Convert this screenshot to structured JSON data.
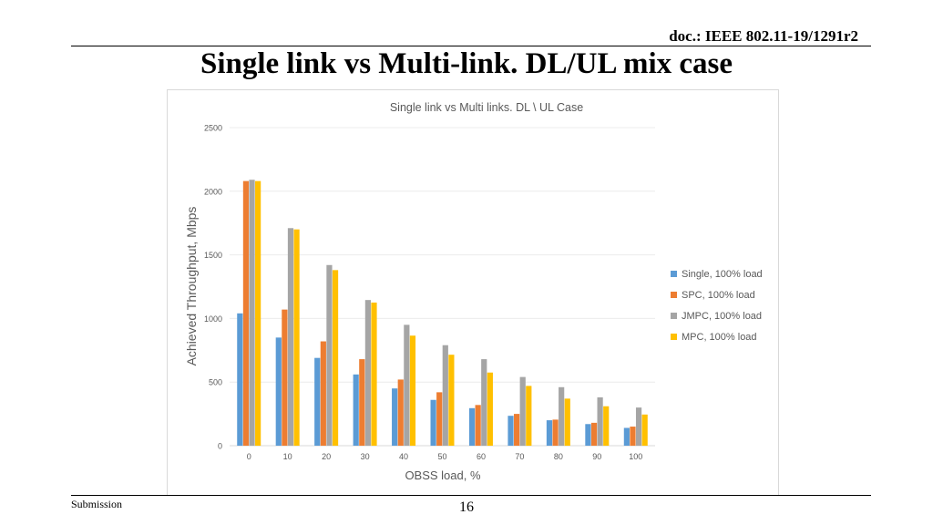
{
  "header": {
    "doc_id": "doc.: IEEE 802.11-19/1291r2",
    "slide_title": "Single link vs Multi-link. DL/UL mix case"
  },
  "footer": {
    "left": "Submission",
    "page_number": "16"
  },
  "chart_data": {
    "type": "bar",
    "title": "Single link vs Multi links. DL \\ UL Case",
    "xlabel": "OBSS load, %",
    "ylabel": "Achieved Throughput, Mbps",
    "ylim": [
      0,
      2500
    ],
    "yticks": [
      "0",
      "500",
      "1000",
      "1500",
      "2000",
      "2500"
    ],
    "grid": true,
    "legend_position": "right",
    "categories": [
      "0",
      "10",
      "20",
      "30",
      "40",
      "50",
      "60",
      "70",
      "80",
      "90",
      "100"
    ],
    "series": [
      {
        "name": "Single, 100% load",
        "color": "#5b9bd5",
        "values": [
          1040,
          850,
          690,
          560,
          450,
          360,
          295,
          235,
          200,
          170,
          140
        ]
      },
      {
        "name": "SPC, 100% load",
        "color": "#ed7d31",
        "values": [
          2080,
          1070,
          820,
          680,
          520,
          420,
          320,
          250,
          205,
          180,
          150
        ]
      },
      {
        "name": "JMPC, 100% load",
        "color": "#a5a5a5",
        "values": [
          2090,
          1710,
          1420,
          1145,
          950,
          790,
          680,
          540,
          460,
          380,
          300
        ]
      },
      {
        "name": "MPC, 100% load",
        "color": "#ffc000",
        "values": [
          2080,
          1700,
          1380,
          1125,
          865,
          715,
          575,
          470,
          370,
          310,
          245
        ]
      }
    ]
  }
}
